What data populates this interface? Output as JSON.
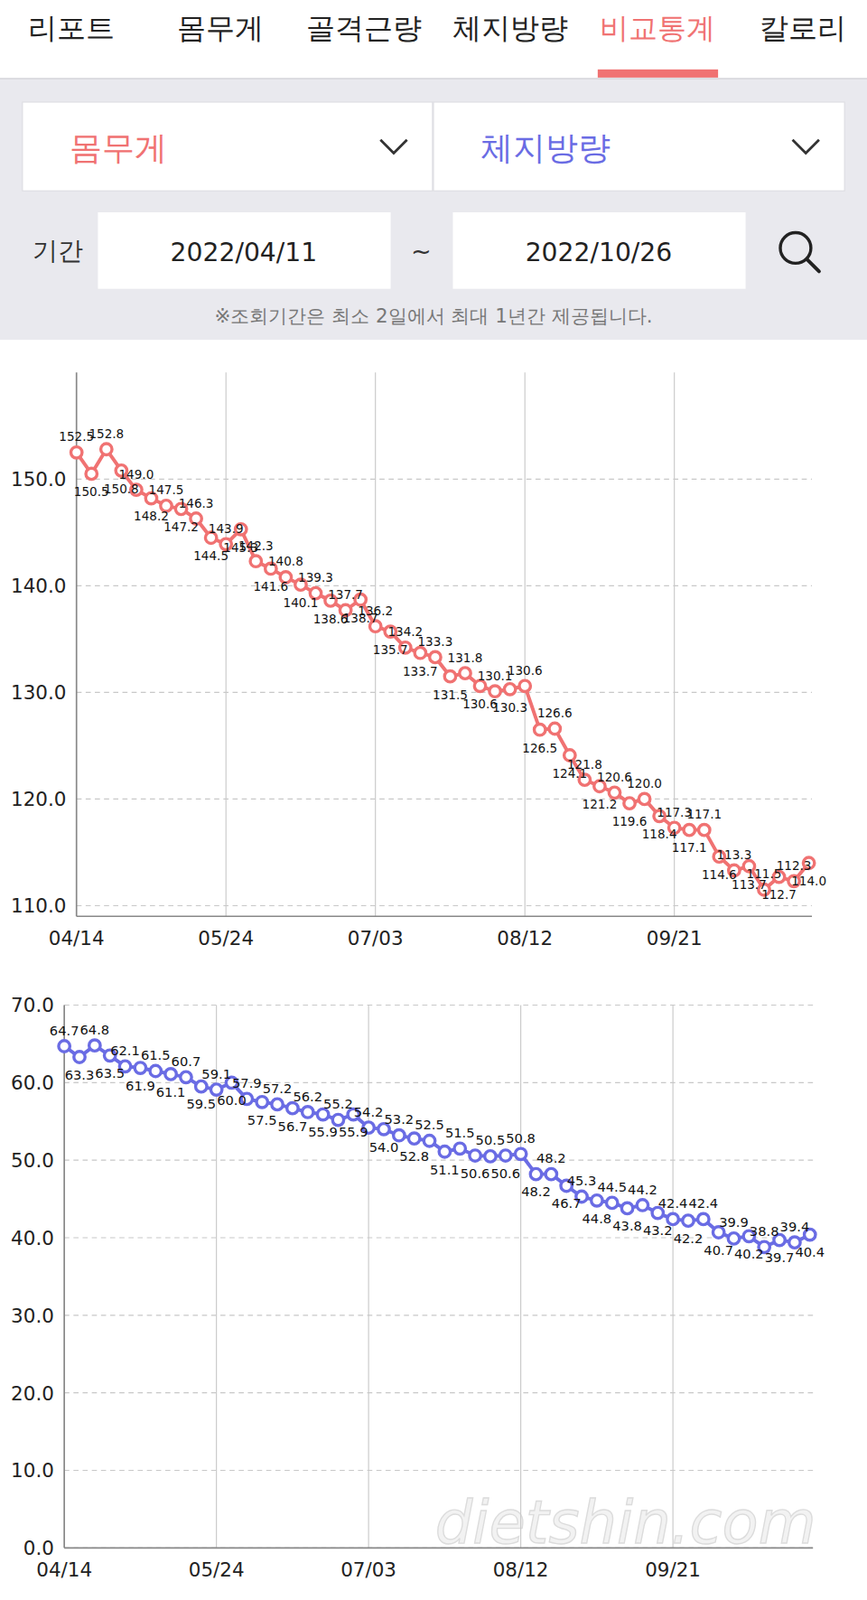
{
  "header": {
    "tabs": [
      "리포트",
      "몸무게",
      "골격근량",
      "체지방량",
      "비교통계",
      "칼로리"
    ],
    "active_tab": 4
  },
  "filters": {
    "period_label": "기간",
    "start_date": "2022/04/11",
    "separator": "~",
    "end_date": "2022/10/26",
    "note": "※조회기간은 최소 2일에서 최대 1년간 제공됩니다."
  },
  "watermark": "dietshin.com",
  "chart_data": [
    {
      "type": "line",
      "categories": [
        "04/14",
        null,
        null,
        null,
        null,
        null,
        null,
        null,
        null,
        null,
        "05/24",
        null,
        null,
        null,
        null,
        null,
        null,
        null,
        null,
        null,
        "07/03",
        null,
        null,
        null,
        null,
        null,
        null,
        null,
        null,
        null,
        "08/12",
        null,
        null,
        null,
        null,
        null,
        null,
        null,
        null,
        null,
        "09/21",
        null,
        null,
        null,
        null,
        null,
        null,
        null,
        null,
        null
      ],
      "series": [
        {
          "name": "몸무게",
          "color": "#f07272",
          "marker": "circle",
          "values": [
            152.5,
            150.5,
            152.8,
            150.8,
            149.0,
            148.2,
            147.5,
            147.2,
            146.3,
            144.5,
            143.9,
            145.3,
            142.3,
            141.6,
            140.8,
            140.1,
            139.3,
            138.6,
            137.7,
            138.7,
            136.2,
            135.7,
            134.2,
            133.7,
            133.3,
            131.5,
            131.8,
            130.6,
            130.1,
            130.3,
            130.6,
            126.5,
            126.6,
            124.1,
            121.8,
            121.2,
            120.6,
            119.6,
            120.0,
            118.4,
            117.3,
            117.1,
            117.1,
            114.6,
            113.3,
            113.7,
            111.5,
            112.7,
            112.3,
            114.0
          ],
          "value_labels": [
            "152.5",
            "150.5",
            "152.8",
            "150.8",
            "149.0",
            "148.2",
            "147.5",
            "147.2",
            "146.3",
            "144.5",
            "143.9",
            "145.3",
            "142.3",
            "141.6",
            "140.8",
            "140.1",
            "139.3",
            "138.6",
            "137.7",
            "138.7",
            "136.2",
            "135.7",
            "134.2",
            "133.7",
            "133.3",
            "131.5",
            "131.8",
            "130.6",
            "130.1",
            "130.3",
            "130.6",
            "126.5",
            "126.6",
            "124.1",
            "121.8",
            "121.2",
            "120.6",
            "119.6",
            "120.0",
            "118.4",
            "117.3",
            "117.1",
            "117.1",
            "114.6",
            "113.3",
            "113.7",
            "111.5",
            "112.7",
            "112.3",
            "114.0"
          ]
        }
      ],
      "ylim": [
        109,
        160
      ],
      "yticks": [
        {
          "value": 110,
          "label": "110.0"
        },
        {
          "value": 120,
          "label": "120.0"
        },
        {
          "value": 130,
          "label": "130.0"
        },
        {
          "value": 140,
          "label": "140.0"
        },
        {
          "value": 150,
          "label": "150.0"
        }
      ],
      "grid": true,
      "data_labels": true
    },
    {
      "type": "line",
      "categories": [
        "04/14",
        null,
        null,
        null,
        null,
        null,
        null,
        null,
        null,
        null,
        "05/24",
        null,
        null,
        null,
        null,
        null,
        null,
        null,
        null,
        null,
        "07/03",
        null,
        null,
        null,
        null,
        null,
        null,
        null,
        null,
        null,
        "08/12",
        null,
        null,
        null,
        null,
        null,
        null,
        null,
        null,
        null,
        "09/21",
        null,
        null,
        null,
        null,
        null,
        null,
        null,
        null,
        null
      ],
      "series": [
        {
          "name": "체지방량",
          "color": "#6a6ce4",
          "marker": "circle",
          "values": [
            64.7,
            63.3,
            64.8,
            63.5,
            62.1,
            61.9,
            61.5,
            61.1,
            60.7,
            59.5,
            59.1,
            60.0,
            57.9,
            57.5,
            57.2,
            56.7,
            56.2,
            55.9,
            55.2,
            55.9,
            54.2,
            54.0,
            53.2,
            52.8,
            52.5,
            51.1,
            51.5,
            50.6,
            50.5,
            50.6,
            50.8,
            48.2,
            48.2,
            46.7,
            45.3,
            44.8,
            44.5,
            43.8,
            44.2,
            43.2,
            42.4,
            42.2,
            42.4,
            40.7,
            39.9,
            40.2,
            38.8,
            39.7,
            39.4,
            40.4
          ],
          "value_labels": [
            "64.7",
            "63.3",
            "64.8",
            "63.5",
            "62.1",
            "61.9",
            "61.5",
            "61.1",
            "60.7",
            "59.5",
            "59.1",
            "60.0",
            "57.9",
            "57.5",
            "57.2",
            "56.7",
            "56.2",
            "55.9",
            "55.2",
            "55.9",
            "54.2",
            "54.0",
            "53.2",
            "52.8",
            "52.5",
            "51.1",
            "51.5",
            "50.6",
            "50.5",
            "50.6",
            "50.8",
            "48.2",
            "48.2",
            "46.7",
            "45.3",
            "44.8",
            "44.5",
            "43.8",
            "44.2",
            "43.2",
            "42.4",
            "42.2",
            "42.4",
            "40.7",
            "39.9",
            "40.2",
            "38.8",
            "39.7",
            "39.4",
            "40.4"
          ]
        }
      ],
      "ylim": [
        0,
        70
      ],
      "yticks": [
        {
          "value": 0,
          "label": "0.0"
        },
        {
          "value": 10,
          "label": "10.0"
        },
        {
          "value": 20,
          "label": "20.0"
        },
        {
          "value": 30,
          "label": "30.0"
        },
        {
          "value": 40,
          "label": "40.0"
        },
        {
          "value": 50,
          "label": "50.0"
        },
        {
          "value": 60,
          "label": "60.0"
        },
        {
          "value": 70,
          "label": "70.0"
        }
      ],
      "grid": true,
      "data_labels": true
    }
  ]
}
